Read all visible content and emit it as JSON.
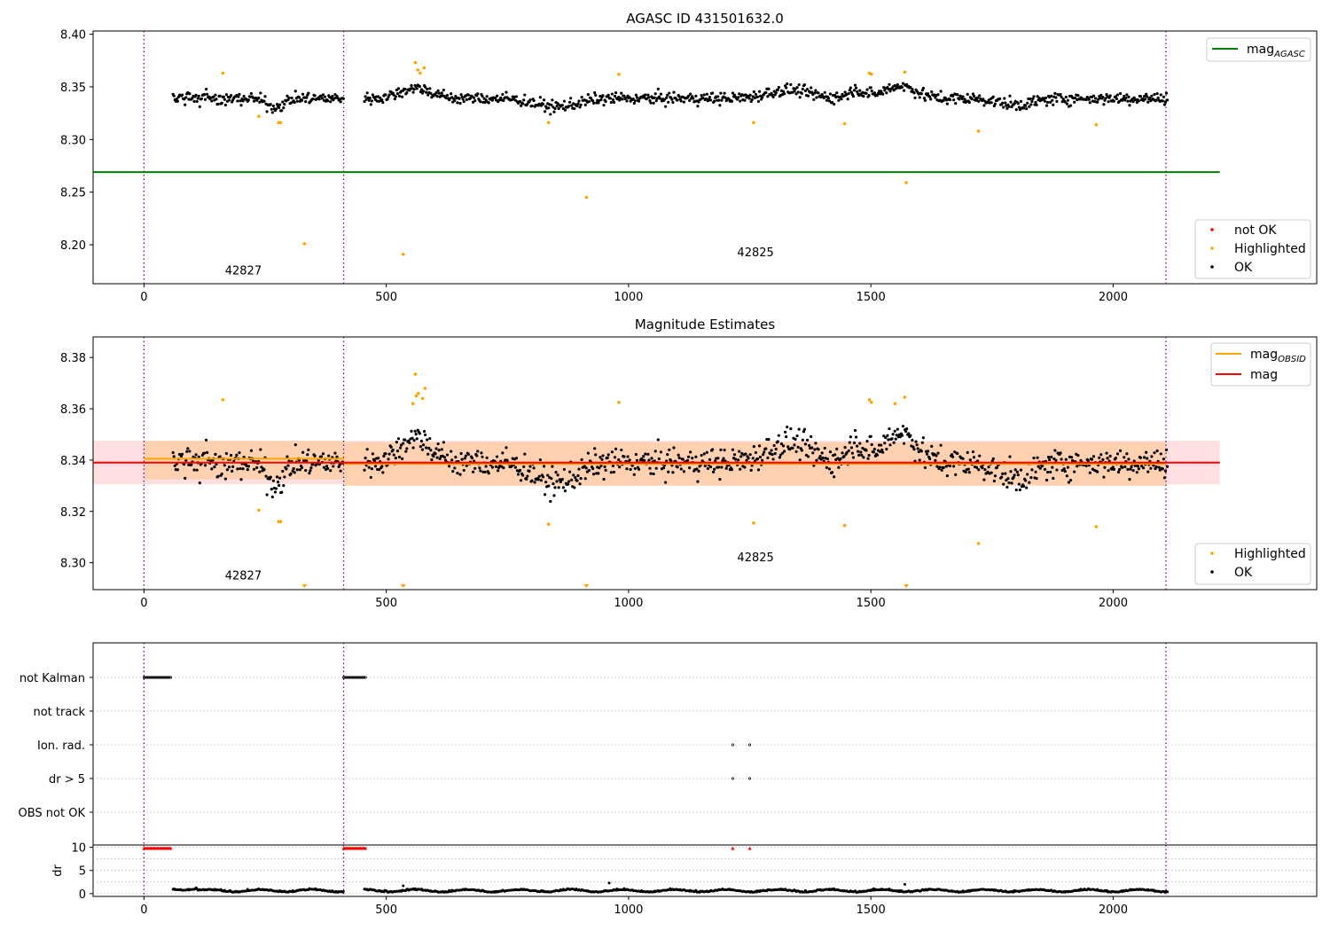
{
  "chart_data": [
    {
      "type": "scatter",
      "title": "AGASC ID 431501632.0",
      "xlabel": "",
      "ylabel": "",
      "xlim": [
        -105,
        2420
      ],
      "ylim": [
        8.163,
        8.403
      ],
      "xticks": [
        0,
        500,
        1000,
        1500,
        2000
      ],
      "yticks": [
        8.2,
        8.25,
        8.3,
        8.35,
        8.4
      ],
      "obs_boundaries": [
        0,
        412,
        2109
      ],
      "obs_labels": [
        {
          "text": "42827",
          "x": 205,
          "y": 8.172
        },
        {
          "text": "42825",
          "x": 1262,
          "y": 8.189
        }
      ],
      "reference_lines": [
        {
          "name": "mag",
          "subscript": "AGASC",
          "y": 8.269,
          "x_range": [
            -105,
            2220
          ],
          "color": "#008000"
        }
      ],
      "series": [
        {
          "name": "not OK",
          "color": "#ff0000",
          "points": []
        },
        {
          "name": "Highlighted",
          "color": "#ffa500",
          "points": [
            [
              163,
              8.363
            ],
            [
              237,
              8.322
            ],
            [
              278,
              8.316
            ],
            [
              282,
              8.316
            ],
            [
              331,
              8.201
            ],
            [
              535,
              8.191
            ],
            [
              560,
              8.373
            ],
            [
              565,
              8.366
            ],
            [
              570,
              8.363
            ],
            [
              578,
              8.368
            ],
            [
              835,
              8.316
            ],
            [
              913,
              8.245
            ],
            [
              980,
              8.362
            ],
            [
              1258,
              8.316
            ],
            [
              1446,
              8.315
            ],
            [
              1497,
              8.363
            ],
            [
              1501,
              8.362
            ],
            [
              1570,
              8.364
            ],
            [
              1573,
              8.259
            ],
            [
              1722,
              8.308
            ],
            [
              1965,
              8.314
            ]
          ]
        },
        {
          "name": "OK",
          "color": "#000000",
          "generated": true,
          "ranges": [
            [
              60,
              412
            ],
            [
              455,
              2112
            ]
          ]
        }
      ],
      "legends": [
        {
          "entries": [
            "mag"
          ],
          "placement": "upper right"
        },
        {
          "entries": [
            "not OK",
            "Highlighted",
            "OK"
          ],
          "placement": "lower right"
        }
      ]
    },
    {
      "type": "scatter",
      "title": "Magnitude Estimates",
      "xlabel": "",
      "ylabel": "",
      "xlim": [
        -105,
        2420
      ],
      "ylim": [
        8.2895,
        8.388
      ],
      "xticks": [
        0,
        500,
        1000,
        1500,
        2000
      ],
      "yticks": [
        8.3,
        8.32,
        8.34,
        8.36,
        8.38
      ],
      "obs_boundaries": [
        0,
        412,
        2109
      ],
      "obs_labels": [
        {
          "text": "42827",
          "x": 205,
          "y": 8.2935
        },
        {
          "text": "42825",
          "x": 1262,
          "y": 8.3005
        }
      ],
      "bands": [
        {
          "y_range": [
            8.3305,
            8.3475
          ],
          "x_range": [
            -105,
            2220
          ],
          "color": "#ffd9dd"
        },
        {
          "y_range": [
            8.3325,
            8.3475
          ],
          "x_range": [
            0,
            412
          ],
          "color": "#ffcfa8"
        },
        {
          "y_range": [
            8.33,
            8.347
          ],
          "x_range": [
            412,
            2109
          ],
          "color": "#ffcfa8"
        }
      ],
      "reference_lines": [
        {
          "name": "mag",
          "subscript": "OBSID",
          "y": 8.3405,
          "x_range": [
            0,
            412
          ],
          "color": "#ffa500"
        },
        {
          "name": "mag",
          "subscript": "OBSID",
          "y": 8.3385,
          "x_range": [
            412,
            2109
          ],
          "color": "#ffa500"
        },
        {
          "name": "mag",
          "subscript": "",
          "y": 8.339,
          "x_range": [
            -105,
            2220
          ],
          "color": "#ff0000"
        }
      ],
      "series": [
        {
          "name": "Highlighted",
          "color": "#ffa500",
          "points": [
            [
              163,
              8.3635
            ],
            [
              237,
              8.3205
            ],
            [
              278,
              8.316
            ],
            [
              282,
              8.316
            ],
            [
              555,
              8.362
            ],
            [
              560,
              8.3735
            ],
            [
              562,
              8.365
            ],
            [
              566,
              8.366
            ],
            [
              575,
              8.364
            ],
            [
              580,
              8.368
            ],
            [
              835,
              8.315
            ],
            [
              980,
              8.3625
            ],
            [
              1258,
              8.3155
            ],
            [
              1446,
              8.3145
            ],
            [
              1497,
              8.3635
            ],
            [
              1501,
              8.3625
            ],
            [
              1550,
              8.362
            ],
            [
              1570,
              8.3645
            ],
            [
              1722,
              8.3075
            ],
            [
              1965,
              8.314
            ]
          ]
        },
        {
          "name": "OK",
          "color": "#000000",
          "generated": true,
          "ranges": [
            [
              60,
              412
            ],
            [
              455,
              2112
            ]
          ]
        }
      ],
      "clipped_markers": [
        331,
        535,
        913,
        1573
      ],
      "legends": [
        {
          "entries": [
            "mag OBSID",
            "mag"
          ],
          "placement": "upper right"
        },
        {
          "entries": [
            "Highlighted",
            "OK"
          ],
          "placement": "lower right"
        }
      ]
    },
    {
      "type": "scatter",
      "title": "",
      "xlabel": "",
      "ylabel": "",
      "xlim": [
        -105,
        2420
      ],
      "xticks": [
        0,
        500,
        1000,
        1500,
        2000
      ],
      "obs_boundaries": [
        0,
        412,
        2109
      ],
      "rows": [
        "not Kalman",
        "not track",
        "Ion. rad.",
        "dr > 5",
        "OBS not OK"
      ],
      "row_flags": {
        "not Kalman": [
          [
            0,
            56
          ],
          [
            412,
            458
          ]
        ],
        "not track": [],
        "Ion. rad.": [
          [
            1215,
            1215
          ],
          [
            1250,
            1250
          ]
        ],
        "dr > 5": [
          [
            1215,
            1215
          ],
          [
            1250,
            1250
          ]
        ],
        "OBS not OK": []
      }
    },
    {
      "type": "scatter",
      "title": "",
      "xlabel": "",
      "ylabel": "dr",
      "xlim": [
        -105,
        2420
      ],
      "ylim": [
        -0.6,
        10.5
      ],
      "xticks": [
        0,
        500,
        1000,
        1500,
        2000
      ],
      "yticks": [
        0,
        5,
        10
      ],
      "obs_boundaries": [
        0,
        412,
        2109
      ],
      "limit_markers": [
        [
          0,
          56
        ],
        [
          412,
          458
        ],
        [
          1215,
          1215
        ],
        [
          1250,
          1250
        ]
      ],
      "series": [
        {
          "name": "dr",
          "color": "#000000",
          "generated": true,
          "ranges": [
            [
              60,
              412
            ],
            [
              455,
              2112
            ]
          ]
        }
      ]
    }
  ]
}
